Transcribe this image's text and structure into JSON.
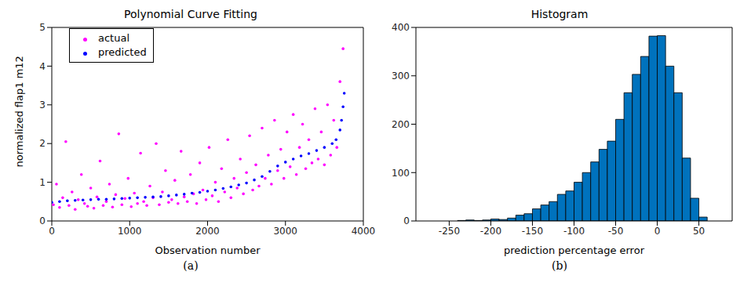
{
  "chart_data": [
    {
      "type": "scatter",
      "title": "Polynomial Curve Fitting",
      "caption": "(a)",
      "x_label": "Observation number",
      "y_label": "normalized flap1 m12",
      "xlim": [
        0,
        4000
      ],
      "ylim": [
        0,
        5
      ],
      "xticks": [
        0,
        1000,
        2000,
        3000,
        4000
      ],
      "yticks": [
        0,
        1,
        2,
        3,
        4,
        5
      ],
      "legend": "upper left",
      "series": [
        {
          "name": "actual",
          "color": "#ff00ff",
          "marker": "point",
          "x": [
            20,
            60,
            100,
            140,
            180,
            220,
            260,
            300,
            340,
            380,
            420,
            460,
            500,
            540,
            580,
            620,
            660,
            700,
            740,
            780,
            820,
            860,
            900,
            940,
            980,
            1020,
            1060,
            1100,
            1140,
            1180,
            1220,
            1260,
            1300,
            1340,
            1380,
            1420,
            1460,
            1500,
            1540,
            1580,
            1620,
            1660,
            1700,
            1740,
            1780,
            1820,
            1860,
            1900,
            1940,
            1980,
            2020,
            2060,
            2100,
            2140,
            2180,
            2220,
            2260,
            2300,
            2340,
            2380,
            2420,
            2460,
            2500,
            2540,
            2580,
            2620,
            2660,
            2700,
            2740,
            2780,
            2820,
            2860,
            2900,
            2940,
            2980,
            3020,
            3060,
            3100,
            3140,
            3180,
            3220,
            3260,
            3300,
            3340,
            3380,
            3420,
            3460,
            3500,
            3540,
            3580,
            3620,
            3660,
            3700,
            3740
          ],
          "values": [
            0.42,
            0.95,
            0.35,
            0.6,
            2.05,
            0.4,
            0.75,
            0.3,
            0.55,
            1.2,
            0.45,
            0.38,
            0.85,
            0.33,
            0.62,
            1.55,
            0.4,
            0.5,
            0.95,
            0.36,
            0.68,
            2.25,
            0.42,
            0.58,
            1.1,
            0.37,
            0.72,
            0.45,
            1.75,
            0.5,
            0.4,
            0.9,
            0.6,
            2.0,
            0.42,
            0.75,
            1.3,
            0.48,
            0.55,
            1.05,
            0.45,
            1.8,
            0.62,
            0.5,
            1.2,
            0.7,
            0.45,
            1.5,
            0.8,
            0.55,
            1.9,
            0.65,
            1.0,
            0.5,
            1.35,
            0.75,
            2.1,
            0.6,
            1.1,
            0.85,
            1.6,
            0.7,
            1.25,
            2.2,
            0.8,
            1.45,
            0.9,
            2.4,
            1.1,
            1.7,
            0.95,
            2.6,
            1.3,
            1.85,
            1.1,
            2.3,
            1.4,
            2.75,
            1.2,
            1.9,
            2.5,
            1.35,
            2.1,
            1.5,
            2.9,
            1.6,
            2.3,
            1.45,
            3.0,
            1.7,
            2.6,
            1.9,
            3.6,
            4.45
          ]
        },
        {
          "name": "predicted",
          "color": "#0000ff",
          "marker": "point",
          "x": [
            0,
            100,
            200,
            300,
            400,
            500,
            600,
            700,
            800,
            900,
            1000,
            1100,
            1200,
            1300,
            1400,
            1500,
            1600,
            1700,
            1800,
            1900,
            2000,
            2100,
            2200,
            2300,
            2400,
            2500,
            2600,
            2700,
            2800,
            2900,
            3000,
            3100,
            3200,
            3300,
            3400,
            3500,
            3600,
            3650,
            3700,
            3720,
            3740,
            3755
          ],
          "values": [
            0.48,
            0.5,
            0.52,
            0.53,
            0.54,
            0.55,
            0.56,
            0.56,
            0.57,
            0.58,
            0.59,
            0.6,
            0.61,
            0.62,
            0.63,
            0.65,
            0.67,
            0.69,
            0.72,
            0.74,
            0.77,
            0.8,
            0.84,
            0.88,
            0.93,
            0.98,
            1.06,
            1.15,
            1.28,
            1.42,
            1.52,
            1.6,
            1.68,
            1.74,
            1.82,
            1.9,
            2.0,
            2.1,
            2.35,
            2.6,
            2.95,
            3.3
          ]
        }
      ]
    },
    {
      "type": "histogram",
      "title": "Histogram",
      "caption": "(b)",
      "x_label": "prediction percentage error",
      "color": "#0072bd",
      "xlim": [
        -290,
        90
      ],
      "ylim": [
        0,
        400
      ],
      "xticks": [
        -250,
        -200,
        -150,
        -100,
        -50,
        0,
        50
      ],
      "yticks": [
        0,
        100,
        200,
        300,
        400
      ],
      "bins": [
        -240,
        -230,
        -220,
        -210,
        -200,
        -190,
        -180,
        -170,
        -160,
        -150,
        -140,
        -130,
        -120,
        -110,
        -100,
        -90,
        -80,
        -70,
        -60,
        -50,
        -40,
        -30,
        -20,
        -10,
        0,
        10,
        20,
        30,
        40,
        50,
        60
      ],
      "counts": [
        1,
        2,
        1,
        2,
        4,
        3,
        6,
        12,
        15,
        25,
        33,
        40,
        55,
        62,
        80,
        100,
        122,
        148,
        165,
        210,
        265,
        303,
        340,
        382,
        383,
        320,
        265,
        130,
        47,
        8
      ]
    }
  ]
}
